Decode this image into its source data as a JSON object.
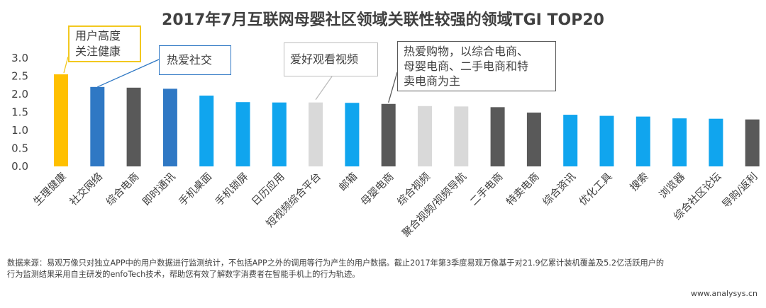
{
  "chart_data": {
    "type": "bar",
    "title": "2017年7月互联网母婴社区领域关联性较强的领域TGI TOP20",
    "categories": [
      "生理健康",
      "社交网络",
      "综合电商",
      "即时通讯",
      "手机桌面",
      "手机锁屏",
      "日历应用",
      "短视频综合平台",
      "邮箱",
      "母婴电商",
      "综合视频",
      "聚合视频/视频导航",
      "二手电商",
      "特卖电商",
      "综合资讯",
      "优化工具",
      "搜索",
      "浏览器",
      "综合社区论坛",
      "导购/返利"
    ],
    "values": [
      2.55,
      2.2,
      2.18,
      2.15,
      1.96,
      1.78,
      1.77,
      1.77,
      1.76,
      1.73,
      1.67,
      1.66,
      1.64,
      1.49,
      1.43,
      1.4,
      1.38,
      1.33,
      1.32,
      1.3
    ],
    "bar_colors": [
      "#ffc000",
      "#2f78c4",
      "#595959",
      "#2f78c4",
      "#10a5ee",
      "#10a5ee",
      "#10a5ee",
      "#d9d9d9",
      "#10a5ee",
      "#595959",
      "#d9d9d9",
      "#d9d9d9",
      "#595959",
      "#595959",
      "#10a5ee",
      "#10a5ee",
      "#10a5ee",
      "#10a5ee",
      "#10a5ee",
      "#595959"
    ],
    "y_ticks": [
      "0.0",
      "0.5",
      "1.0",
      "1.5",
      "2.0",
      "2.5",
      "3.0"
    ],
    "ylim": [
      0,
      3.0
    ],
    "grid": false,
    "annotations": [
      {
        "text": "用户高度\n关注健康",
        "target": "生理健康",
        "color": "#f2c81f"
      },
      {
        "text": "热爱社交",
        "target": "社交网络",
        "color": "#2f78c4"
      },
      {
        "text": "爱好观看视频",
        "target": "短视频综合平台",
        "color": "#bdbdbd"
      },
      {
        "text": "热爱购物，以综合电商、\n母婴电商、二手电商和特\n卖电商为主",
        "target": "母婴电商",
        "color": "#595959"
      }
    ]
  },
  "footnote": {
    "line1": "数据来源：易观万像只对独立APP中的用户数据进行监测统计，不包括APP之外的调用等行为产生的用户数据。截止2017年第3季度易观万像基于对21.9亿累计装机覆盖及5.2亿活跃用户的",
    "line2": "行为监测结果采用自主研发的enfoTech技术，帮助您有效了解数字消费者在智能手机上的行为轨迹。"
  },
  "site": "www.analysys.cn"
}
